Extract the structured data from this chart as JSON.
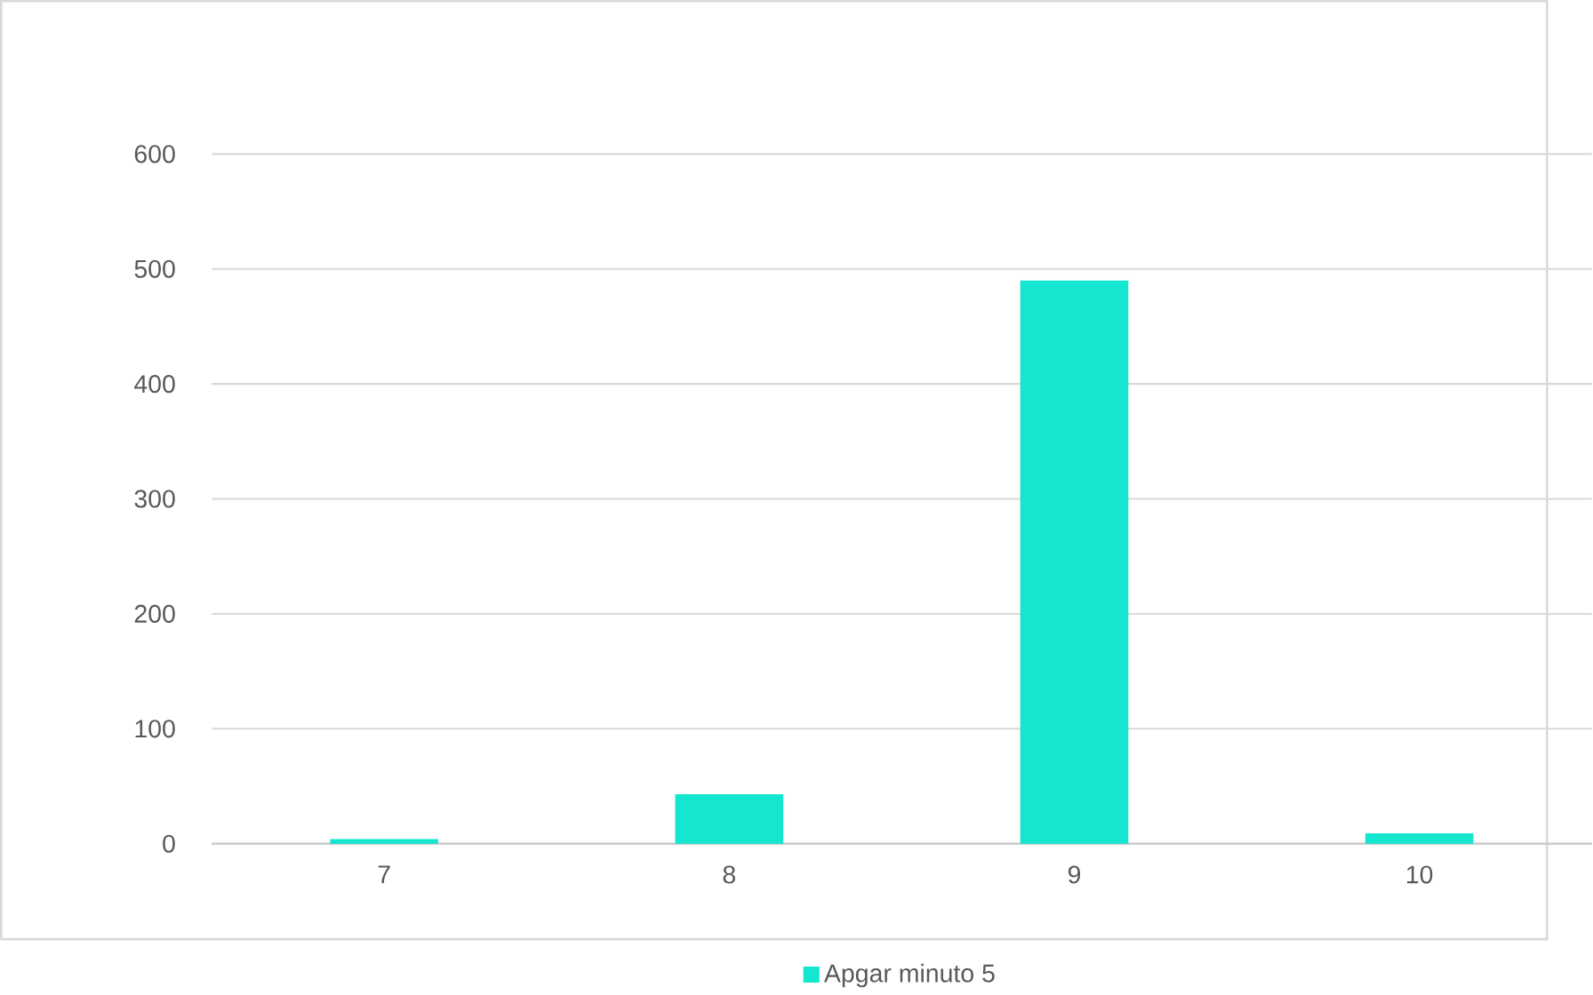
{
  "chart_data": {
    "type": "bar",
    "categories": [
      "7",
      "8",
      "9",
      "10"
    ],
    "series": [
      {
        "name": "Apgar minuto 5",
        "color": "#15e6cf",
        "values": [
          4,
          43,
          490,
          9
        ]
      }
    ],
    "ylim": [
      0,
      600
    ],
    "yticks": [
      0,
      100,
      200,
      300,
      400,
      500,
      600
    ],
    "grid": "y",
    "legend": "bottom"
  }
}
